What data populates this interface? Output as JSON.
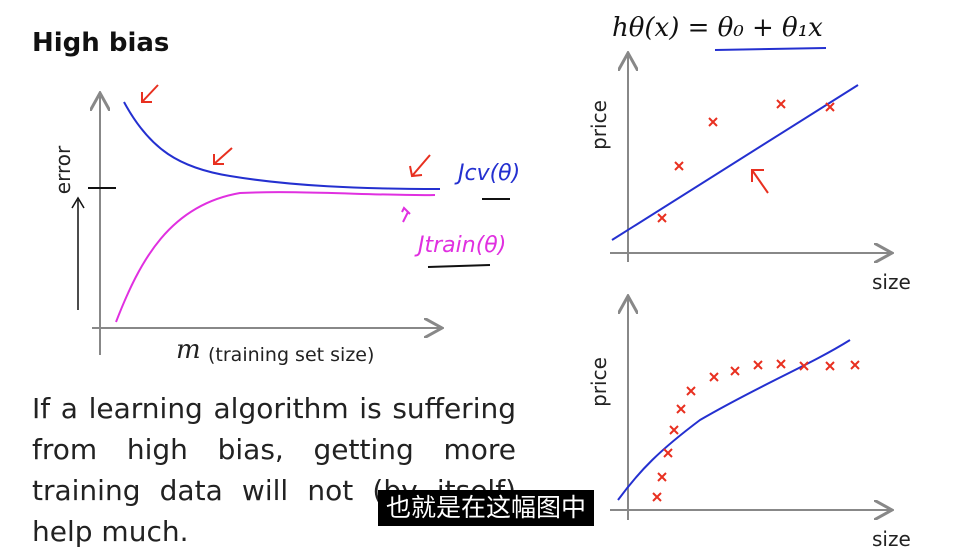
{
  "title": "High bias",
  "learning_curve": {
    "y_label": "error",
    "x_var": "m",
    "x_label": "(training set size)",
    "cv_label": "Jcv(θ)",
    "train_label": "Jtrain(θ)"
  },
  "hypothesis": "hθ(x) = θ₀ + θ₁x",
  "plots": [
    {
      "y_label": "price",
      "x_label": "size"
    },
    {
      "y_label": "price",
      "x_label": "size"
    }
  ],
  "paragraph": "If a learning algorithm is suffering from high bias, getting more training data will not (by itself) help much.",
  "caption": "也就是在这幅图中"
}
